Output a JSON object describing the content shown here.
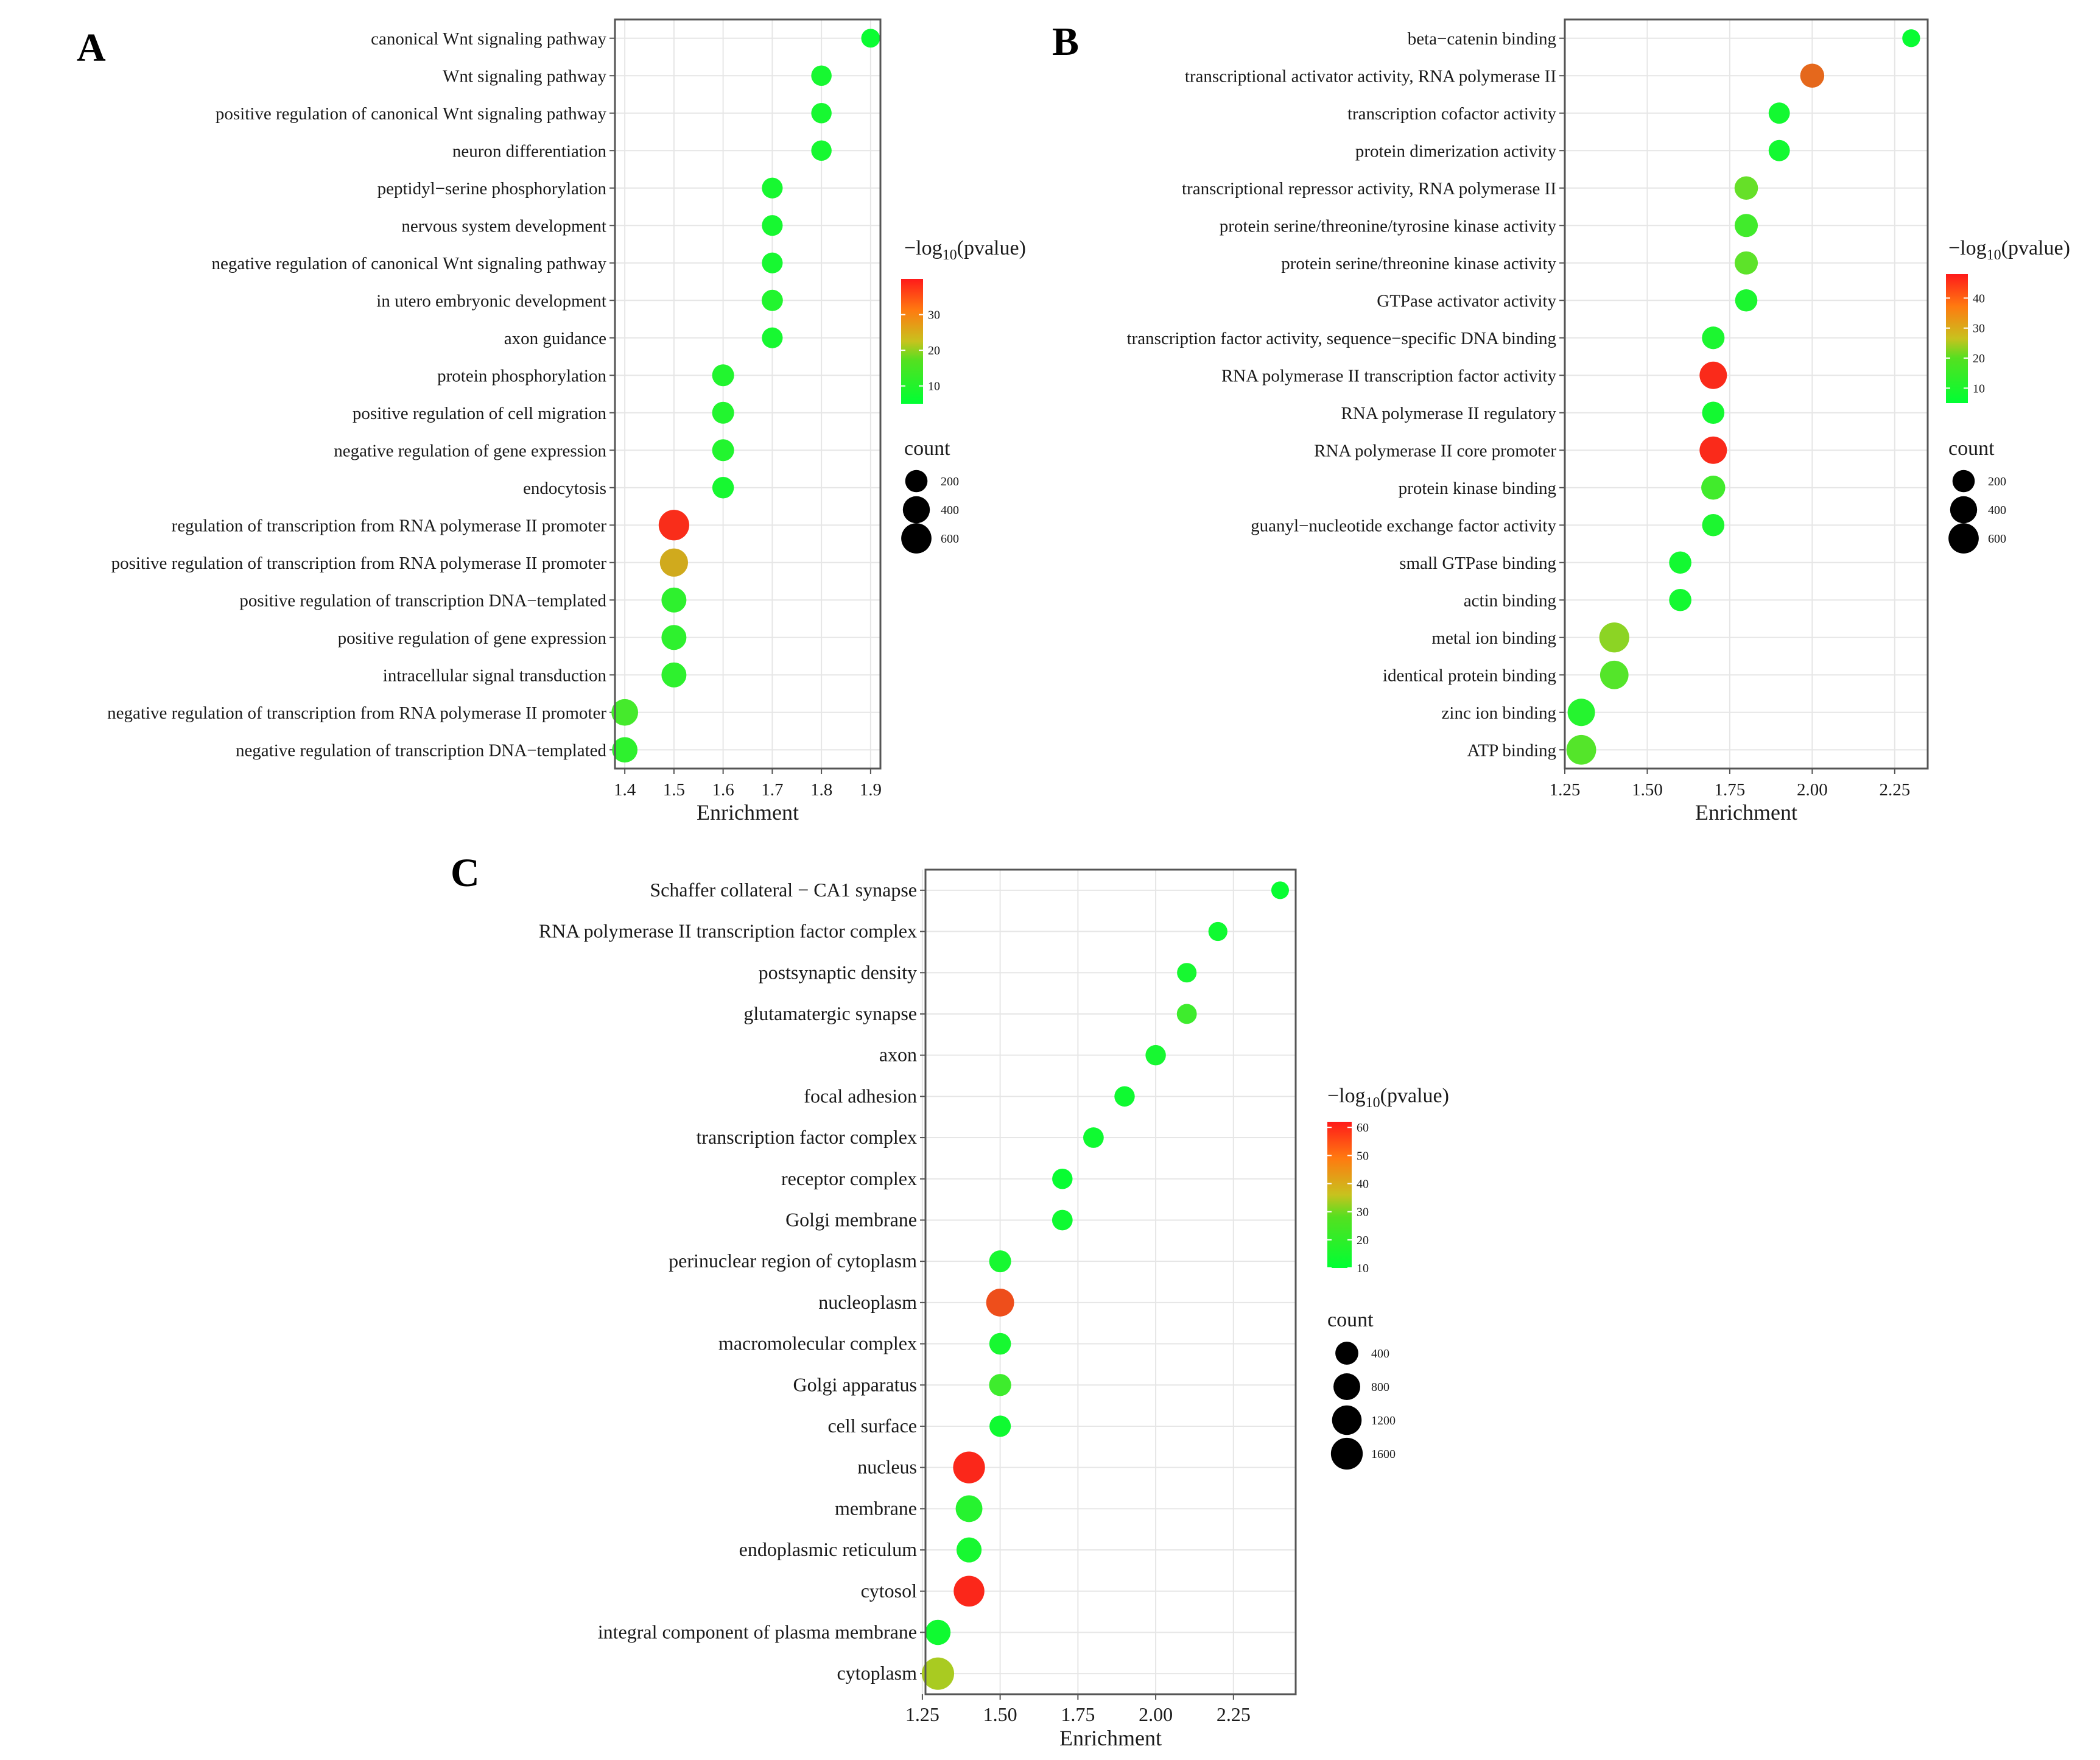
{
  "colors": {
    "low": "#00ff33",
    "mid": "#c8c21e",
    "high": "#ff1a1a"
  },
  "chart_data": [
    {
      "panel": "A",
      "type": "scatter",
      "xlabel": "Enrichment",
      "xlim": [
        1.38,
        1.92
      ],
      "xticks": [
        "1.4",
        "1.5",
        "1.6",
        "1.7",
        "1.8",
        "1.9"
      ],
      "xtick_values": [
        1.4,
        1.5,
        1.6,
        1.7,
        1.8,
        1.9
      ],
      "color_legend": {
        "title_prefix": "−log",
        "title_sub": "10",
        "title_suffix": "(pvalue)",
        "range": [
          5,
          40
        ],
        "ticks": [
          "10",
          "20",
          "30"
        ],
        "tick_values": [
          10,
          20,
          30
        ]
      },
      "size_legend": {
        "title": "count",
        "labels": [
          "200",
          "400",
          "600"
        ],
        "values": [
          200,
          400,
          600
        ]
      },
      "count_range": [
        100,
        700
      ],
      "terms": [
        {
          "term": "canonical Wnt signaling pathway",
          "enrichment": 1.9,
          "pvalue": 6,
          "count": 120
        },
        {
          "term": "Wnt signaling pathway",
          "enrichment": 1.8,
          "pvalue": 7,
          "count": 150
        },
        {
          "term": "positive regulation of canonical Wnt signaling pathway",
          "enrichment": 1.8,
          "pvalue": 7,
          "count": 150
        },
        {
          "term": "neuron differentiation",
          "enrichment": 1.8,
          "pvalue": 7,
          "count": 150
        },
        {
          "term": "peptidyl−serine phosphorylation",
          "enrichment": 1.7,
          "pvalue": 7,
          "count": 160
        },
        {
          "term": "nervous system development",
          "enrichment": 1.7,
          "pvalue": 7,
          "count": 160
        },
        {
          "term": "negative regulation of canonical Wnt signaling pathway",
          "enrichment": 1.7,
          "pvalue": 7,
          "count": 160
        },
        {
          "term": "in utero embryonic development",
          "enrichment": 1.7,
          "pvalue": 8,
          "count": 170
        },
        {
          "term": "axon guidance",
          "enrichment": 1.7,
          "pvalue": 7,
          "count": 160
        },
        {
          "term": "protein phosphorylation",
          "enrichment": 1.6,
          "pvalue": 8,
          "count": 190
        },
        {
          "term": "positive regulation of cell migration",
          "enrichment": 1.6,
          "pvalue": 8,
          "count": 190
        },
        {
          "term": "negative regulation of gene expression",
          "enrichment": 1.6,
          "pvalue": 8,
          "count": 190
        },
        {
          "term": "endocytosis",
          "enrichment": 1.6,
          "pvalue": 7,
          "count": 180
        },
        {
          "term": "regulation of transcription from RNA polymerase II promoter",
          "enrichment": 1.5,
          "pvalue": 38,
          "count": 620
        },
        {
          "term": "positive regulation of transcription from RNA polymerase II promoter",
          "enrichment": 1.5,
          "pvalue": 25,
          "count": 460
        },
        {
          "term": "positive regulation of transcription DNA−templated",
          "enrichment": 1.5,
          "pvalue": 9,
          "count": 300
        },
        {
          "term": "positive regulation of gene expression",
          "enrichment": 1.5,
          "pvalue": 9,
          "count": 300
        },
        {
          "term": "intracellular signal transduction",
          "enrichment": 1.5,
          "pvalue": 9,
          "count": 300
        },
        {
          "term": "negative regulation of transcription from RNA polymerase II promoter",
          "enrichment": 1.4,
          "pvalue": 11,
          "count": 380
        },
        {
          "term": "negative regulation of transcription DNA−templated",
          "enrichment": 1.4,
          "pvalue": 9,
          "count": 320
        }
      ]
    },
    {
      "panel": "B",
      "type": "scatter",
      "xlabel": "Enrichment",
      "xlim": [
        1.25,
        2.35
      ],
      "xticks": [
        "1.25",
        "1.50",
        "1.75",
        "2.00",
        "2.25"
      ],
      "xtick_values": [
        1.25,
        1.5,
        1.75,
        2.0,
        2.25
      ],
      "color_legend": {
        "title_prefix": "−log",
        "title_sub": "10",
        "title_suffix": "(pvalue)",
        "range": [
          5,
          48
        ],
        "ticks": [
          "10",
          "20",
          "30",
          "40"
        ],
        "tick_values": [
          10,
          20,
          30,
          40
        ]
      },
      "size_legend": {
        "title": "count",
        "labels": [
          "200",
          "400",
          "600"
        ],
        "values": [
          200,
          400,
          600
        ]
      },
      "count_range": [
        100,
        700
      ],
      "terms": [
        {
          "term": "beta−catenin binding",
          "enrichment": 2.3,
          "pvalue": 6,
          "count": 110
        },
        {
          "term": "transcriptional activator activity, RNA polymerase II",
          "enrichment": 2.0,
          "pvalue": 38,
          "count": 260
        },
        {
          "term": "transcription cofactor activity",
          "enrichment": 1.9,
          "pvalue": 7,
          "count": 170
        },
        {
          "term": "protein dimerization activity",
          "enrichment": 1.9,
          "pvalue": 7,
          "count": 170
        },
        {
          "term": "transcriptional repressor activity, RNA polymerase II",
          "enrichment": 1.8,
          "pvalue": 16,
          "count": 240
        },
        {
          "term": "protein serine/threonine/tyrosine kinase activity",
          "enrichment": 1.8,
          "pvalue": 12,
          "count": 230
        },
        {
          "term": "protein serine/threonine kinase activity",
          "enrichment": 1.8,
          "pvalue": 15,
          "count": 230
        },
        {
          "term": "GTPase activator activity",
          "enrichment": 1.8,
          "pvalue": 8,
          "count": 200
        },
        {
          "term": "transcription factor activity, sequence−specific DNA binding",
          "enrichment": 1.7,
          "pvalue": 8,
          "count": 210
        },
        {
          "term": "RNA polymerase II transcription factor activity",
          "enrichment": 1.7,
          "pvalue": 46,
          "count": 420
        },
        {
          "term": "RNA polymerase II regulatory",
          "enrichment": 1.7,
          "pvalue": 7,
          "count": 200
        },
        {
          "term": "RNA polymerase II core promoter",
          "enrichment": 1.7,
          "pvalue": 46,
          "count": 420
        },
        {
          "term": "protein kinase binding",
          "enrichment": 1.7,
          "pvalue": 12,
          "count": 260
        },
        {
          "term": "guanyl−nucleotide exchange factor activity",
          "enrichment": 1.7,
          "pvalue": 8,
          "count": 200
        },
        {
          "term": "small GTPase binding",
          "enrichment": 1.6,
          "pvalue": 7,
          "count": 200
        },
        {
          "term": "actin binding",
          "enrichment": 1.6,
          "pvalue": 7,
          "count": 200
        },
        {
          "term": "metal ion binding",
          "enrichment": 1.4,
          "pvalue": 20,
          "count": 580
        },
        {
          "term": "identical protein binding",
          "enrichment": 1.4,
          "pvalue": 14,
          "count": 480
        },
        {
          "term": "zinc ion binding",
          "enrichment": 1.3,
          "pvalue": 9,
          "count": 420
        },
        {
          "term": "ATP binding",
          "enrichment": 1.3,
          "pvalue": 14,
          "count": 560
        }
      ]
    },
    {
      "panel": "C",
      "type": "scatter",
      "xlabel": "Enrichment",
      "xlim": [
        1.26,
        2.45
      ],
      "xticks": [
        "1.25",
        "1.50",
        "1.75",
        "2.00",
        "2.25"
      ],
      "xtick_values": [
        1.25,
        1.5,
        1.75,
        2.0,
        2.25
      ],
      "color_legend": {
        "title_prefix": "−log",
        "title_sub": "10",
        "title_suffix": "(pvalue)",
        "range": [
          10,
          62
        ],
        "ticks": [
          "10",
          "20",
          "30",
          "40",
          "50",
          "60"
        ],
        "tick_values": [
          10,
          20,
          30,
          40,
          50,
          60
        ]
      },
      "size_legend": {
        "title": "count",
        "labels": [
          "400",
          "800",
          "1200",
          "1600"
        ],
        "values": [
          400,
          800,
          1200,
          1600
        ]
      },
      "count_range": [
        100,
        1800
      ],
      "terms": [
        {
          "term": "Schaffer collateral − CA1 synapse",
          "enrichment": 2.4,
          "pvalue": 11,
          "count": 120
        },
        {
          "term": "RNA polymerase II transcription factor complex",
          "enrichment": 2.2,
          "pvalue": 12,
          "count": 160
        },
        {
          "term": "postsynaptic density",
          "enrichment": 2.1,
          "pvalue": 13,
          "count": 180
        },
        {
          "term": "glutamatergic synapse",
          "enrichment": 2.1,
          "pvalue": 18,
          "count": 200
        },
        {
          "term": "axon",
          "enrichment": 2.0,
          "pvalue": 13,
          "count": 220
        },
        {
          "term": "focal adhesion",
          "enrichment": 1.9,
          "pvalue": 12,
          "count": 220
        },
        {
          "term": "transcription factor complex",
          "enrichment": 1.8,
          "pvalue": 12,
          "count": 230
        },
        {
          "term": "receptor complex",
          "enrichment": 1.7,
          "pvalue": 11,
          "count": 220
        },
        {
          "term": "Golgi membrane",
          "enrichment": 1.7,
          "pvalue": 12,
          "count": 230
        },
        {
          "term": "perinuclear region of cytoplasm",
          "enrichment": 1.5,
          "pvalue": 13,
          "count": 320
        },
        {
          "term": "nucleoplasm",
          "enrichment": 1.5,
          "pvalue": 54,
          "count": 950
        },
        {
          "term": "macromolecular complex",
          "enrichment": 1.5,
          "pvalue": 13,
          "count": 300
        },
        {
          "term": "Golgi apparatus",
          "enrichment": 1.5,
          "pvalue": 18,
          "count": 330
        },
        {
          "term": "cell surface",
          "enrichment": 1.5,
          "pvalue": 12,
          "count": 280
        },
        {
          "term": "nucleus",
          "enrichment": 1.4,
          "pvalue": 60,
          "count": 1600
        },
        {
          "term": "membrane",
          "enrichment": 1.4,
          "pvalue": 15,
          "count": 800
        },
        {
          "term": "endoplasmic reticulum",
          "enrichment": 1.4,
          "pvalue": 13,
          "count": 600
        },
        {
          "term": "cytosol",
          "enrichment": 1.4,
          "pvalue": 60,
          "count": 1400
        },
        {
          "term": "integral component of plasma membrane",
          "enrichment": 1.3,
          "pvalue": 12,
          "count": 620
        },
        {
          "term": "cytoplasm",
          "enrichment": 1.3,
          "pvalue": 32,
          "count": 1700
        }
      ]
    }
  ]
}
